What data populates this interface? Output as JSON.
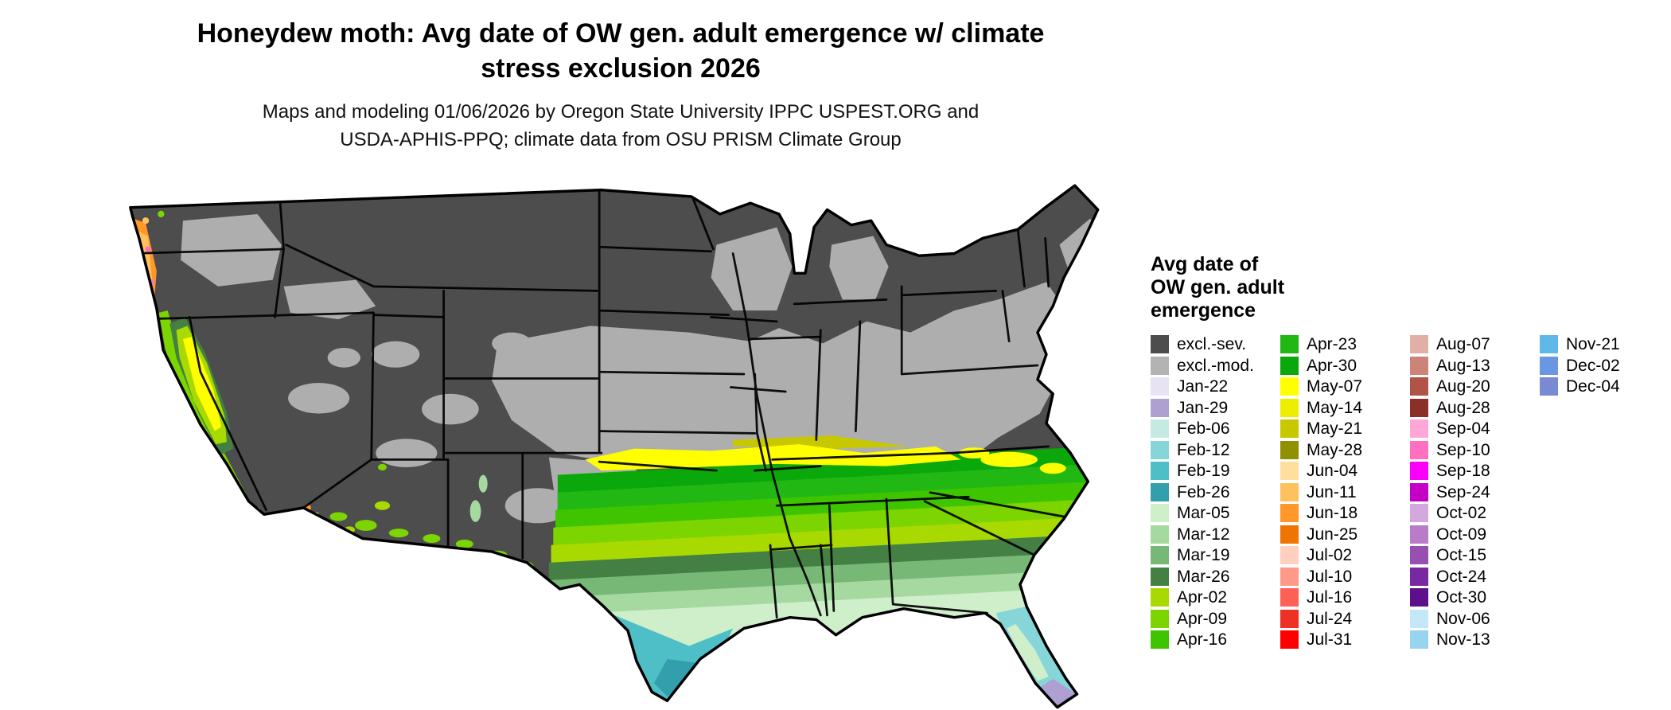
{
  "header": {
    "title_line1": "Honeydew moth: Avg date of OW gen. adult emergence w/ climate",
    "title_line2": "stress exclusion 2026",
    "subtitle_line1": "Maps and modeling 01/06/2026 by Oregon State University IPPC USPEST.ORG and",
    "subtitle_line2": "USDA-APHIS-PPQ; climate data from OSU PRISM Climate Group"
  },
  "legend": {
    "title_lines": [
      "Avg date of",
      "OW gen. adult",
      "emergence"
    ],
    "columns": [
      [
        {
          "label": "excl.-sev.",
          "color": "#4D4D4D"
        },
        {
          "label": "excl.-mod.",
          "color": "#B3B3B3"
        },
        {
          "label": "Jan-22",
          "color": "#E7E3F2"
        },
        {
          "label": "Jan-29",
          "color": "#AFA0D2"
        },
        {
          "label": "Feb-06",
          "color": "#C5EAE2"
        },
        {
          "label": "Feb-12",
          "color": "#86D5D8"
        },
        {
          "label": "Feb-19",
          "color": "#4FBFC7"
        },
        {
          "label": "Feb-26",
          "color": "#339FAC"
        },
        {
          "label": "Mar-05",
          "color": "#CFEFCB"
        },
        {
          "label": "Mar-12",
          "color": "#A5D9A0"
        },
        {
          "label": "Mar-19",
          "color": "#77B877"
        },
        {
          "label": "Mar-26",
          "color": "#447F44"
        },
        {
          "label": "Apr-02",
          "color": "#A8D900"
        },
        {
          "label": "Apr-09",
          "color": "#7CD400"
        },
        {
          "label": "Apr-16",
          "color": "#3FC400"
        }
      ],
      [
        {
          "label": "Apr-23",
          "color": "#22B814"
        },
        {
          "label": "Apr-30",
          "color": "#0AA80A"
        },
        {
          "label": "May-07",
          "color": "#FFFF00"
        },
        {
          "label": "May-14",
          "color": "#EDED00"
        },
        {
          "label": "May-21",
          "color": "#C8C800"
        },
        {
          "label": "May-28",
          "color": "#909000"
        },
        {
          "label": "Jun-04",
          "color": "#FFDFA0"
        },
        {
          "label": "Jun-11",
          "color": "#FFC05E"
        },
        {
          "label": "Jun-18",
          "color": "#FF9828"
        },
        {
          "label": "Jun-25",
          "color": "#EF7500"
        },
        {
          "label": "Jul-02",
          "color": "#FFCFC0"
        },
        {
          "label": "Jul-10",
          "color": "#FF9A88"
        },
        {
          "label": "Jul-16",
          "color": "#FF6055"
        },
        {
          "label": "Jul-24",
          "color": "#EE3025"
        },
        {
          "label": "Jul-31",
          "color": "#FF0000"
        }
      ],
      [
        {
          "label": "Aug-07",
          "color": "#DFAFA8"
        },
        {
          "label": "Aug-13",
          "color": "#CC8478"
        },
        {
          "label": "Aug-20",
          "color": "#B05448"
        },
        {
          "label": "Aug-28",
          "color": "#8A3028"
        },
        {
          "label": "Sep-04",
          "color": "#FFA8D8"
        },
        {
          "label": "Sep-10",
          "color": "#FF70C0"
        },
        {
          "label": "Sep-18",
          "color": "#FA00FA"
        },
        {
          "label": "Sep-24",
          "color": "#C400C4"
        },
        {
          "label": "Oct-02",
          "color": "#D5A8DD"
        },
        {
          "label": "Oct-09",
          "color": "#B87CC8"
        },
        {
          "label": "Oct-15",
          "color": "#9850B0"
        },
        {
          "label": "Oct-24",
          "color": "#7828A0"
        },
        {
          "label": "Oct-30",
          "color": "#5E0F8C"
        },
        {
          "label": "Nov-06",
          "color": "#C5E8F8"
        },
        {
          "label": "Nov-13",
          "color": "#97D4F0"
        }
      ],
      [
        {
          "label": "Nov-21",
          "color": "#5FB8E8"
        },
        {
          "label": "Dec-02",
          "color": "#6A97E2"
        },
        {
          "label": "Dec-04",
          "color": "#7A8AD2"
        }
      ]
    ]
  },
  "map": {
    "palette": {
      "excl-sev": "#4D4D4D",
      "excl-mod": "#AEAEAE",
      "jan29": "#AFA0D2",
      "feb12": "#86D5D8",
      "feb19": "#4FBFC7",
      "feb26": "#339FAC",
      "mar05": "#CFEFCB",
      "mar12": "#A5D9A0",
      "mar19": "#77B877",
      "mar26": "#447F44",
      "apr02": "#A8D900",
      "apr09": "#7CD400",
      "apr16": "#3FC400",
      "apr23": "#22B814",
      "apr30": "#0AA80A",
      "may07": "#FFFF00",
      "may21": "#C8C800",
      "jun11": "#FFC05E",
      "jun18": "#FF9828",
      "sep10": "#FF70C0",
      "dec02": "#6A97E2",
      "border": "#000000"
    }
  }
}
